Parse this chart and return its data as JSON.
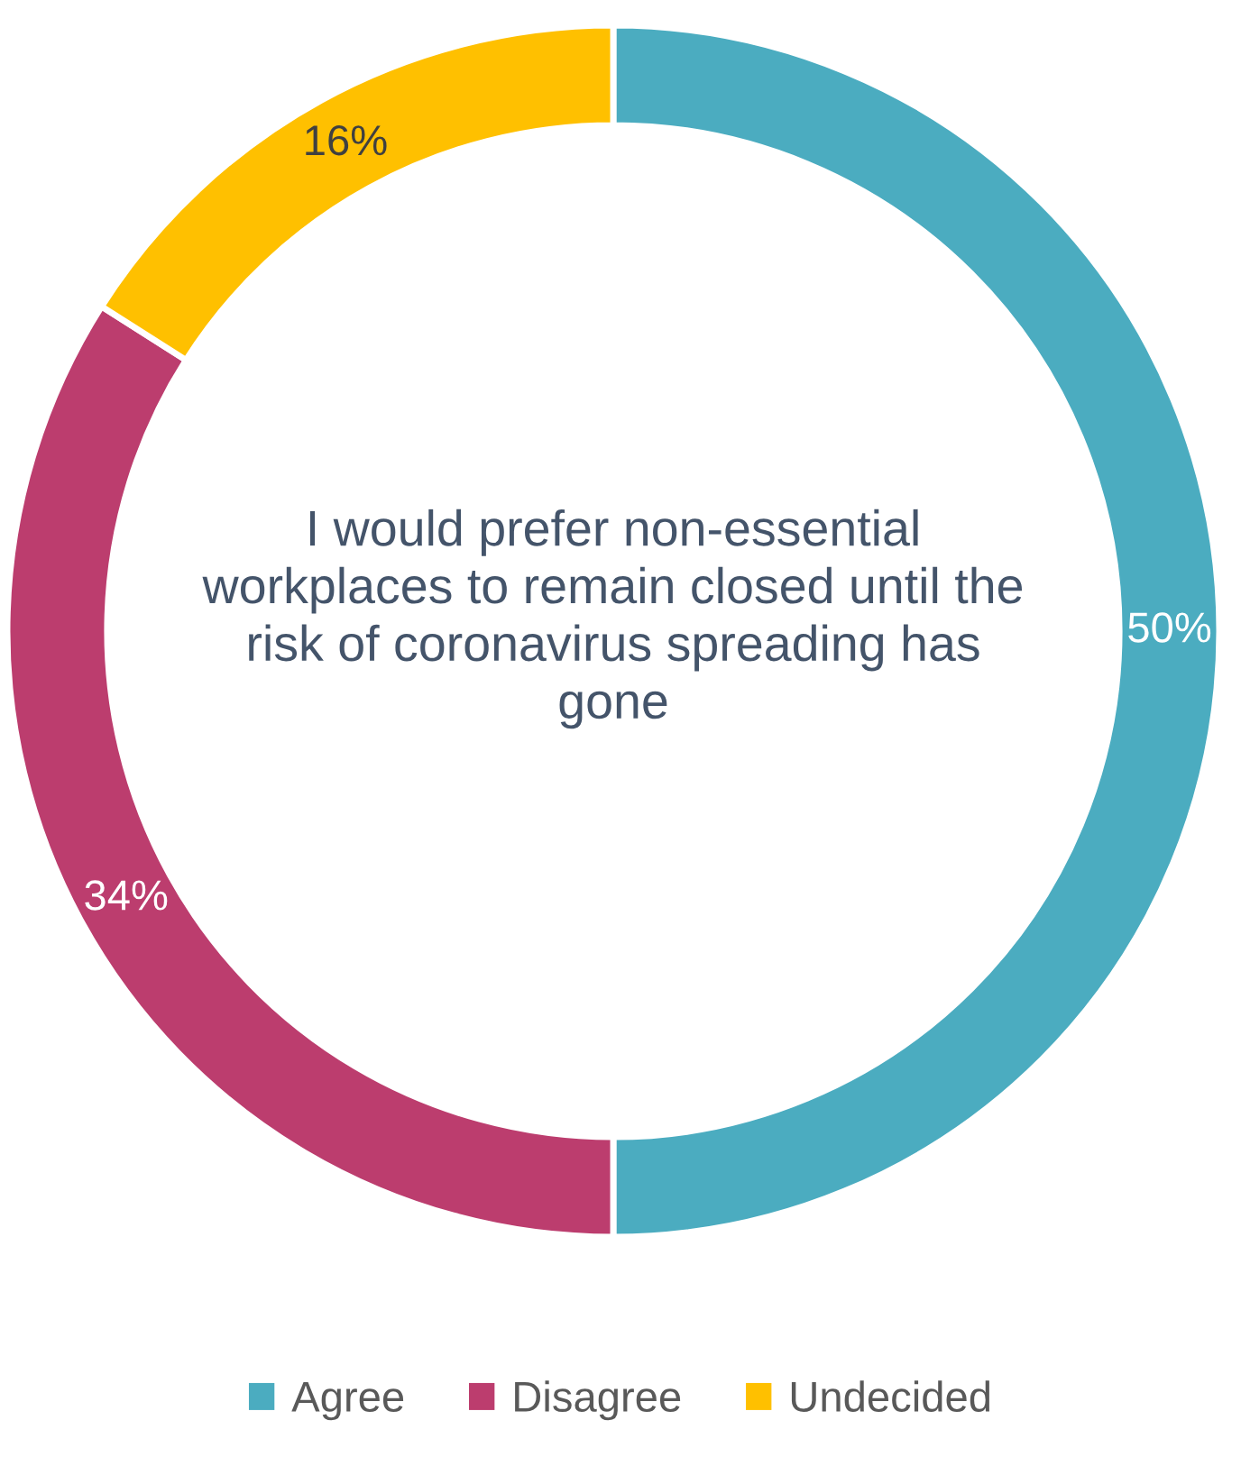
{
  "chart_data": {
    "type": "donut",
    "title": "I would prefer non-essential workplaces to remain closed until the risk of coronavirus spreading has gone",
    "categories": [
      "Agree",
      "Disagree",
      "Undecided"
    ],
    "values": [
      50,
      34,
      16
    ],
    "value_labels": [
      "50%",
      "34%",
      "16%"
    ],
    "colors": [
      "#4bacc0",
      "#bc3d6e",
      "#ffc000"
    ],
    "legend": "bottom"
  }
}
